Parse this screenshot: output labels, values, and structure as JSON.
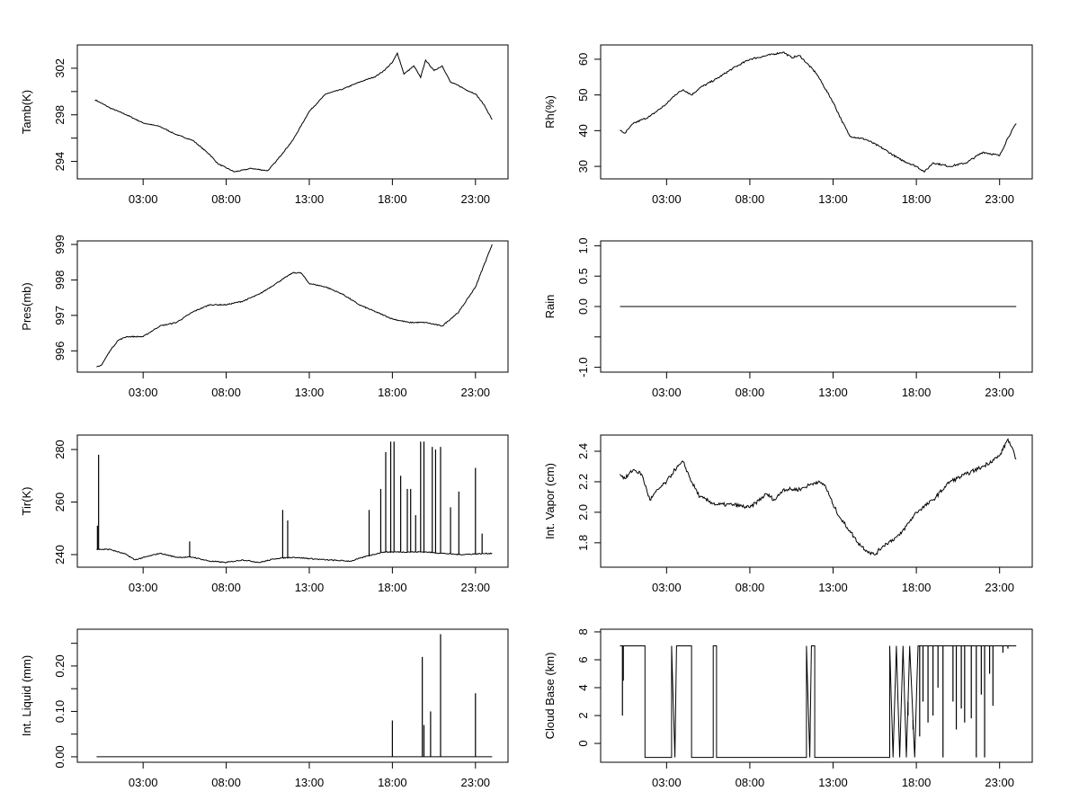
{
  "chart_data": [
    {
      "type": "line",
      "ylabel": "Tamb(K)",
      "xlim": [
        0,
        24
      ],
      "ylim": [
        292.5,
        304
      ],
      "xticks": [
        3,
        8,
        13,
        18,
        23
      ],
      "xtick_labels": [
        "03:00",
        "08:00",
        "13:00",
        "18:00",
        "23:00"
      ],
      "yticks": [
        294,
        296,
        298,
        300,
        302
      ],
      "ytick_labels": [
        "294",
        "",
        "298",
        "",
        "302"
      ],
      "points": [
        [
          0.1,
          299.3
        ],
        [
          1,
          298.6
        ],
        [
          2,
          298
        ],
        [
          3,
          297.3
        ],
        [
          4,
          297
        ],
        [
          5,
          296.3
        ],
        [
          6,
          295.8
        ],
        [
          7,
          294.6
        ],
        [
          7.5,
          293.8
        ],
        [
          8.5,
          293.1
        ],
        [
          9.5,
          293.4
        ],
        [
          10.5,
          293.2
        ],
        [
          11,
          294
        ],
        [
          12,
          295.8
        ],
        [
          13,
          298.3
        ],
        [
          14,
          299.8
        ],
        [
          15,
          300.2
        ],
        [
          16,
          300.8
        ],
        [
          17,
          301.3
        ],
        [
          17.5,
          301.8
        ],
        [
          18,
          302.5
        ],
        [
          18.3,
          303.3
        ],
        [
          18.7,
          301.5
        ],
        [
          19.3,
          302.2
        ],
        [
          19.7,
          301.2
        ],
        [
          20,
          302.7
        ],
        [
          20.5,
          301.8
        ],
        [
          21,
          302.2
        ],
        [
          21.5,
          300.8
        ],
        [
          22,
          300.5
        ],
        [
          22.5,
          300.1
        ],
        [
          23,
          299.8
        ],
        [
          23.5,
          298.9
        ],
        [
          24,
          297.6
        ]
      ]
    },
    {
      "type": "line",
      "ylabel": "Rh(%)",
      "xlim": [
        0,
        24
      ],
      "ylim": [
        26.5,
        64
      ],
      "xticks": [
        3,
        8,
        13,
        18,
        23
      ],
      "xtick_labels": [
        "03:00",
        "08:00",
        "13:00",
        "18:00",
        "23:00"
      ],
      "yticks": [
        30,
        40,
        50,
        60
      ],
      "ytick_labels": [
        "30",
        "40",
        "50",
        "60"
      ],
      "points": [
        [
          0.2,
          40
        ],
        [
          0.5,
          39.3
        ],
        [
          1,
          42
        ],
        [
          2,
          44
        ],
        [
          3,
          47.5
        ],
        [
          3.5,
          50
        ],
        [
          4,
          51.5
        ],
        [
          4.5,
          50
        ],
        [
          5,
          52
        ],
        [
          6,
          54.5
        ],
        [
          7,
          57.5
        ],
        [
          8,
          60
        ],
        [
          9,
          61
        ],
        [
          10,
          62
        ],
        [
          10.5,
          60.5
        ],
        [
          11,
          61
        ],
        [
          12,
          56
        ],
        [
          13,
          48
        ],
        [
          13.5,
          43
        ],
        [
          14,
          38.5
        ],
        [
          15,
          37.5
        ],
        [
          16,
          35
        ],
        [
          17,
          32
        ],
        [
          18,
          30
        ],
        [
          18.5,
          28.5
        ],
        [
          19,
          31
        ],
        [
          20,
          30
        ],
        [
          21,
          31
        ],
        [
          22,
          34
        ],
        [
          23,
          33
        ],
        [
          23.5,
          38
        ],
        [
          24,
          42
        ]
      ]
    },
    {
      "type": "line",
      "ylabel": "Pres(mb)",
      "xlim": [
        0,
        24
      ],
      "ylim": [
        995.4,
        999.1
      ],
      "xticks": [
        3,
        8,
        13,
        18,
        23
      ],
      "xtick_labels": [
        "03:00",
        "08:00",
        "13:00",
        "18:00",
        "23:00"
      ],
      "yticks": [
        996,
        997,
        998,
        999
      ],
      "ytick_labels": [
        "996",
        "997",
        "998",
        "999"
      ],
      "points": [
        [
          0.2,
          995.55
        ],
        [
          0.5,
          995.6
        ],
        [
          1,
          996
        ],
        [
          1.5,
          996.3
        ],
        [
          2,
          996.4
        ],
        [
          3,
          996.4
        ],
        [
          4,
          996.7
        ],
        [
          5,
          996.8
        ],
        [
          6,
          997.1
        ],
        [
          7,
          997.3
        ],
        [
          8,
          997.3
        ],
        [
          9,
          997.4
        ],
        [
          10,
          997.6
        ],
        [
          11,
          997.9
        ],
        [
          12,
          998.2
        ],
        [
          12.5,
          998.2
        ],
        [
          13,
          997.9
        ],
        [
          14,
          997.8
        ],
        [
          15,
          997.6
        ],
        [
          16,
          997.3
        ],
        [
          17,
          997.1
        ],
        [
          18,
          996.9
        ],
        [
          19,
          996.8
        ],
        [
          20,
          996.8
        ],
        [
          21,
          996.7
        ],
        [
          22,
          997.1
        ],
        [
          23,
          997.8
        ],
        [
          24,
          999
        ]
      ]
    },
    {
      "type": "line",
      "ylabel": "Rain",
      "xlim": [
        0,
        24
      ],
      "ylim": [
        -1.08,
        1.08
      ],
      "xticks": [
        3,
        8,
        13,
        18,
        23
      ],
      "xtick_labels": [
        "03:00",
        "08:00",
        "13:00",
        "18:00",
        "23:00"
      ],
      "yticks": [
        -1,
        -0.5,
        0,
        0.5,
        1
      ],
      "ytick_labels": [
        "-1.0",
        "",
        "0.0",
        "0.5",
        "1.0"
      ],
      "points": [
        [
          0.2,
          0
        ],
        [
          24,
          0
        ]
      ]
    },
    {
      "type": "line",
      "ylabel": "Tir(K)",
      "xlim": [
        0,
        24
      ],
      "ylim": [
        235.2,
        285.5
      ],
      "xticks": [
        3,
        8,
        13,
        18,
        23
      ],
      "xtick_labels": [
        "03:00",
        "08:00",
        "13:00",
        "18:00",
        "23:00"
      ],
      "yticks": [
        240,
        260,
        280
      ],
      "ytick_labels": [
        "240",
        "260",
        "280"
      ],
      "points": [
        [
          0.2,
          242
        ],
        [
          1,
          242
        ],
        [
          2,
          240
        ],
        [
          2.5,
          238
        ],
        [
          4,
          240.5
        ],
        [
          5,
          239
        ],
        [
          6,
          239
        ],
        [
          7,
          237.5
        ],
        [
          8,
          237
        ],
        [
          9,
          238
        ],
        [
          10,
          237
        ],
        [
          11,
          238.5
        ],
        [
          12,
          239
        ],
        [
          14,
          238
        ],
        [
          15.5,
          237.5
        ],
        [
          16.5,
          239.5
        ],
        [
          17.5,
          241
        ],
        [
          18.5,
          241
        ],
        [
          20,
          241
        ],
        [
          21,
          240.5
        ],
        [
          22,
          240
        ],
        [
          24,
          240.5
        ]
      ],
      "spikes": [
        [
          0.25,
          251
        ],
        [
          0.32,
          278
        ],
        [
          5.8,
          245
        ],
        [
          11.4,
          257
        ],
        [
          11.7,
          253
        ],
        [
          16.6,
          257
        ],
        [
          17.3,
          265
        ],
        [
          17.6,
          279
        ],
        [
          17.9,
          283
        ],
        [
          18.1,
          283
        ],
        [
          18.5,
          270
        ],
        [
          18.9,
          265
        ],
        [
          19.1,
          265
        ],
        [
          19.4,
          255
        ],
        [
          19.7,
          283
        ],
        [
          19.9,
          283
        ],
        [
          20.4,
          281
        ],
        [
          20.6,
          280
        ],
        [
          20.9,
          281
        ],
        [
          21.5,
          258
        ],
        [
          22,
          264
        ],
        [
          23,
          273
        ],
        [
          23.4,
          248
        ]
      ]
    },
    {
      "type": "line",
      "ylabel": "Int. Vapor (cm)",
      "xlim": [
        0,
        24
      ],
      "ylim": [
        1.64,
        2.506
      ],
      "xticks": [
        3,
        8,
        13,
        18,
        23
      ],
      "xtick_labels": [
        "03:00",
        "08:00",
        "13:00",
        "18:00",
        "23:00"
      ],
      "yticks": [
        1.8,
        2.0,
        2.2,
        2.4
      ],
      "ytick_labels": [
        "1.8",
        "2.0",
        "2.2",
        "2.4"
      ],
      "points": [
        [
          0.2,
          2.25
        ],
        [
          0.5,
          2.22
        ],
        [
          1,
          2.28
        ],
        [
          1.5,
          2.25
        ],
        [
          2,
          2.08
        ],
        [
          2.5,
          2.15
        ],
        [
          3,
          2.2
        ],
        [
          3.5,
          2.28
        ],
        [
          4,
          2.33
        ],
        [
          4.5,
          2.2
        ],
        [
          5,
          2.1
        ],
        [
          6,
          2.05
        ],
        [
          7,
          2.05
        ],
        [
          8,
          2.03
        ],
        [
          9,
          2.12
        ],
        [
          9.5,
          2.08
        ],
        [
          10,
          2.15
        ],
        [
          11,
          2.15
        ],
        [
          12,
          2.2
        ],
        [
          12.5,
          2.18
        ],
        [
          13,
          2.05
        ],
        [
          13.5,
          1.95
        ],
        [
          14,
          1.88
        ],
        [
          14.5,
          1.8
        ],
        [
          15,
          1.75
        ],
        [
          15.5,
          1.72
        ],
        [
          16,
          1.78
        ],
        [
          17,
          1.85
        ],
        [
          18,
          2.0
        ],
        [
          19,
          2.08
        ],
        [
          20,
          2.2
        ],
        [
          21,
          2.25
        ],
        [
          22,
          2.3
        ],
        [
          23,
          2.37
        ],
        [
          23.5,
          2.48
        ],
        [
          24,
          2.35
        ]
      ]
    },
    {
      "type": "line",
      "ylabel": "Int. Liquid (mm)",
      "xlim": [
        0,
        24
      ],
      "ylim": [
        -0.012,
        0.281
      ],
      "xticks": [
        3,
        8,
        13,
        18,
        23
      ],
      "xtick_labels": [
        "03:00",
        "08:00",
        "13:00",
        "18:00",
        "23:00"
      ],
      "yticks": [
        0,
        0.05,
        0.1,
        0.15,
        0.2,
        0.25
      ],
      "ytick_labels": [
        "0.00",
        "",
        "0.10",
        "",
        "0.20",
        ""
      ],
      "points": [
        [
          0.2,
          0
        ],
        [
          24,
          0
        ]
      ],
      "spikes": [
        [
          18.0,
          0.08
        ],
        [
          19.8,
          0.22
        ],
        [
          19.9,
          0.07
        ],
        [
          20.3,
          0.1
        ],
        [
          20.9,
          0.27
        ],
        [
          23.0,
          0.14
        ]
      ]
    },
    {
      "type": "line",
      "ylabel": "Cloud Base (km)",
      "xlim": [
        0,
        24
      ],
      "ylim": [
        -1.35,
        8.19
      ],
      "xticks": [
        3,
        8,
        13,
        18,
        23
      ],
      "xtick_labels": [
        "03:00",
        "08:00",
        "13:00",
        "18:00",
        "23:00"
      ],
      "yticks": [
        0,
        2,
        4,
        6,
        8
      ],
      "ytick_labels": [
        "0",
        "2",
        "4",
        "6",
        "8"
      ],
      "points": [
        [
          0.2,
          7
        ],
        [
          1.7,
          7
        ],
        [
          1.7,
          -1
        ],
        [
          3.3,
          -1
        ],
        [
          3.3,
          7
        ],
        [
          3.5,
          -1
        ],
        [
          3.6,
          7
        ],
        [
          4.5,
          7
        ],
        [
          4.5,
          -1
        ],
        [
          5.8,
          -1
        ],
        [
          5.8,
          7
        ],
        [
          6.0,
          7
        ],
        [
          6.0,
          -1
        ],
        [
          11.4,
          -1
        ],
        [
          11.4,
          7
        ],
        [
          11.6,
          -1
        ],
        [
          11.7,
          7
        ],
        [
          11.9,
          7
        ],
        [
          11.9,
          -1
        ],
        [
          16.4,
          -1
        ],
        [
          16.4,
          7
        ],
        [
          16.6,
          -1
        ],
        [
          16.8,
          7
        ],
        [
          17.0,
          -1
        ],
        [
          17.2,
          7
        ],
        [
          17.4,
          -1
        ],
        [
          17.6,
          7
        ],
        [
          17.9,
          -1
        ],
        [
          18.1,
          7
        ],
        [
          18.5,
          7
        ],
        [
          24,
          7
        ]
      ],
      "spikes": [
        [
          0.35,
          2
        ],
        [
          0.4,
          4.5
        ],
        [
          15.6,
          -1
        ],
        [
          16.1,
          -1
        ],
        [
          17.5,
          2
        ],
        [
          17.8,
          1
        ],
        [
          18.2,
          0.5
        ],
        [
          18.4,
          3
        ],
        [
          18.7,
          1.5
        ],
        [
          19.0,
          2
        ],
        [
          19.3,
          4
        ],
        [
          19.6,
          -1
        ],
        [
          20.2,
          3
        ],
        [
          20.4,
          1
        ],
        [
          20.7,
          2.5
        ],
        [
          20.9,
          1.5
        ],
        [
          21.3,
          1.8
        ],
        [
          21.6,
          -1
        ],
        [
          21.9,
          3.5
        ],
        [
          22.1,
          -1
        ],
        [
          22.4,
          5
        ],
        [
          22.6,
          2.7
        ],
        [
          23.2,
          6.5
        ],
        [
          23.5,
          6.8
        ]
      ]
    }
  ]
}
